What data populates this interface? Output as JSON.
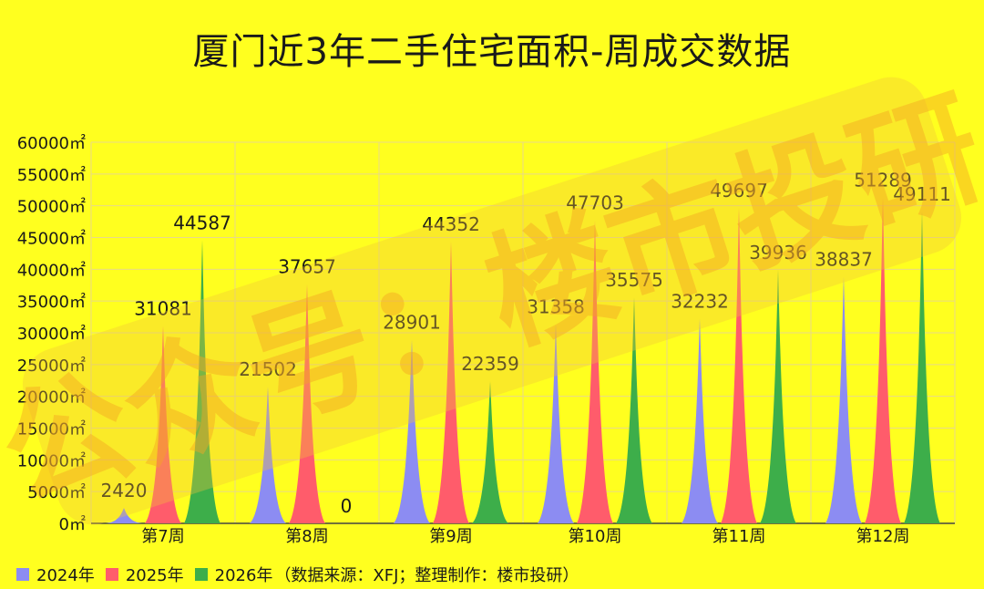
{
  "chart_data": {
    "type": "area",
    "title": "厦门近3年二手住宅面积-周成交数据",
    "categories": [
      "第7周",
      "第8周",
      "第9周",
      "第10周",
      "第11周",
      "第12周"
    ],
    "series": [
      {
        "name": "2024年",
        "color": "#8C8CF2",
        "values": [
          2420,
          21502,
          28901,
          31358,
          32232,
          38837
        ]
      },
      {
        "name": "2025年",
        "color": "#FF5C6B",
        "values": [
          31081,
          37657,
          44352,
          47703,
          49697,
          51289
        ]
      },
      {
        "name": "2026年",
        "color": "#3DAE4A",
        "values": [
          44587,
          0,
          22359,
          35575,
          39936,
          49111
        ]
      }
    ],
    "ylim": [
      0,
      60000
    ],
    "y_ticks": [
      "0㎡",
      "5000㎡",
      "10000㎡",
      "15000㎡",
      "20000㎡",
      "25000㎡",
      "30000㎡",
      "35000㎡",
      "40000㎡",
      "45000㎡",
      "50000㎡",
      "55000㎡",
      "60000㎡"
    ],
    "grid": true,
    "legend_position": "bottom-left"
  },
  "source_note": "（数据来源：XFJ；整理制作：楼市投研）",
  "watermark": "公众号：楼市投研"
}
